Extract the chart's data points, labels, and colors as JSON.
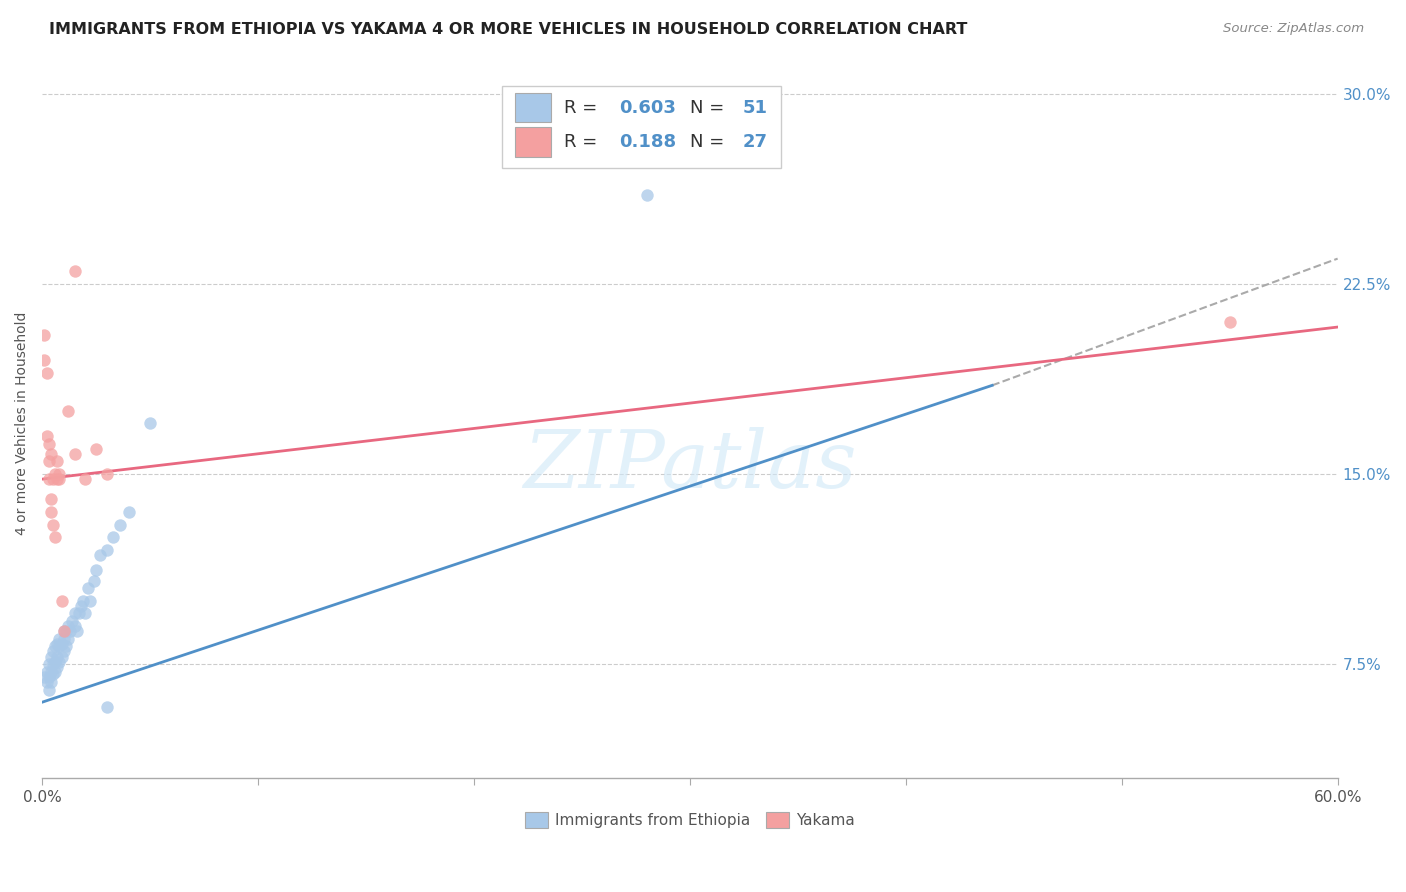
{
  "title": "IMMIGRANTS FROM ETHIOPIA VS YAKAMA 4 OR MORE VEHICLES IN HOUSEHOLD CORRELATION CHART",
  "source": "Source: ZipAtlas.com",
  "ylabel": "4 or more Vehicles in Household",
  "legend_r1": "R = 0.603",
  "legend_n1": "N = 51",
  "legend_r2": "R = 0.188",
  "legend_n2": "N = 27",
  "legend_label1": "Immigrants from Ethiopia",
  "legend_label2": "Yakama",
  "blue_color": "#a8c8e8",
  "pink_color": "#f4a0a0",
  "blue_line_color": "#5090c8",
  "pink_line_color": "#e86880",
  "watermark": "ZIPatlas",
  "blue_scatter_x": [
    0.001,
    0.002,
    0.002,
    0.003,
    0.003,
    0.003,
    0.004,
    0.004,
    0.004,
    0.005,
    0.005,
    0.005,
    0.006,
    0.006,
    0.006,
    0.007,
    0.007,
    0.007,
    0.008,
    0.008,
    0.008,
    0.009,
    0.009,
    0.01,
    0.01,
    0.01,
    0.011,
    0.011,
    0.012,
    0.012,
    0.013,
    0.014,
    0.015,
    0.015,
    0.016,
    0.017,
    0.018,
    0.019,
    0.02,
    0.021,
    0.022,
    0.024,
    0.025,
    0.027,
    0.03,
    0.033,
    0.036,
    0.04,
    0.05,
    0.28,
    0.03
  ],
  "blue_scatter_y": [
    0.07,
    0.068,
    0.072,
    0.065,
    0.07,
    0.075,
    0.068,
    0.072,
    0.078,
    0.071,
    0.075,
    0.08,
    0.072,
    0.076,
    0.082,
    0.074,
    0.078,
    0.083,
    0.076,
    0.082,
    0.085,
    0.078,
    0.083,
    0.08,
    0.085,
    0.088,
    0.082,
    0.088,
    0.085,
    0.09,
    0.088,
    0.092,
    0.09,
    0.095,
    0.088,
    0.095,
    0.098,
    0.1,
    0.095,
    0.105,
    0.1,
    0.108,
    0.112,
    0.118,
    0.12,
    0.125,
    0.13,
    0.135,
    0.17,
    0.26,
    0.058
  ],
  "pink_scatter_x": [
    0.001,
    0.001,
    0.002,
    0.002,
    0.003,
    0.003,
    0.003,
    0.004,
    0.004,
    0.005,
    0.005,
    0.006,
    0.006,
    0.007,
    0.007,
    0.008,
    0.009,
    0.01,
    0.012,
    0.015,
    0.02,
    0.025,
    0.03,
    0.55,
    0.015,
    0.008,
    0.004
  ],
  "pink_scatter_y": [
    0.205,
    0.195,
    0.19,
    0.165,
    0.162,
    0.155,
    0.148,
    0.14,
    0.135,
    0.13,
    0.148,
    0.125,
    0.15,
    0.148,
    0.155,
    0.148,
    0.1,
    0.088,
    0.175,
    0.23,
    0.148,
    0.16,
    0.15,
    0.21,
    0.158,
    0.15,
    0.158
  ],
  "blue_line_x": [
    0.0,
    0.44
  ],
  "blue_line_y": [
    0.06,
    0.185
  ],
  "dashed_line_x": [
    0.44,
    0.6
  ],
  "dashed_line_y": [
    0.185,
    0.235
  ],
  "pink_line_x": [
    0.0,
    0.6
  ],
  "pink_line_y": [
    0.148,
    0.208
  ],
  "x_min": 0.0,
  "x_max": 0.6,
  "y_min": 0.03,
  "y_max": 0.31,
  "y_tick_positions": [
    0.075,
    0.15,
    0.225,
    0.3
  ],
  "y_tick_labels": [
    "7.5%",
    "15.0%",
    "22.5%",
    "30.0%"
  ]
}
